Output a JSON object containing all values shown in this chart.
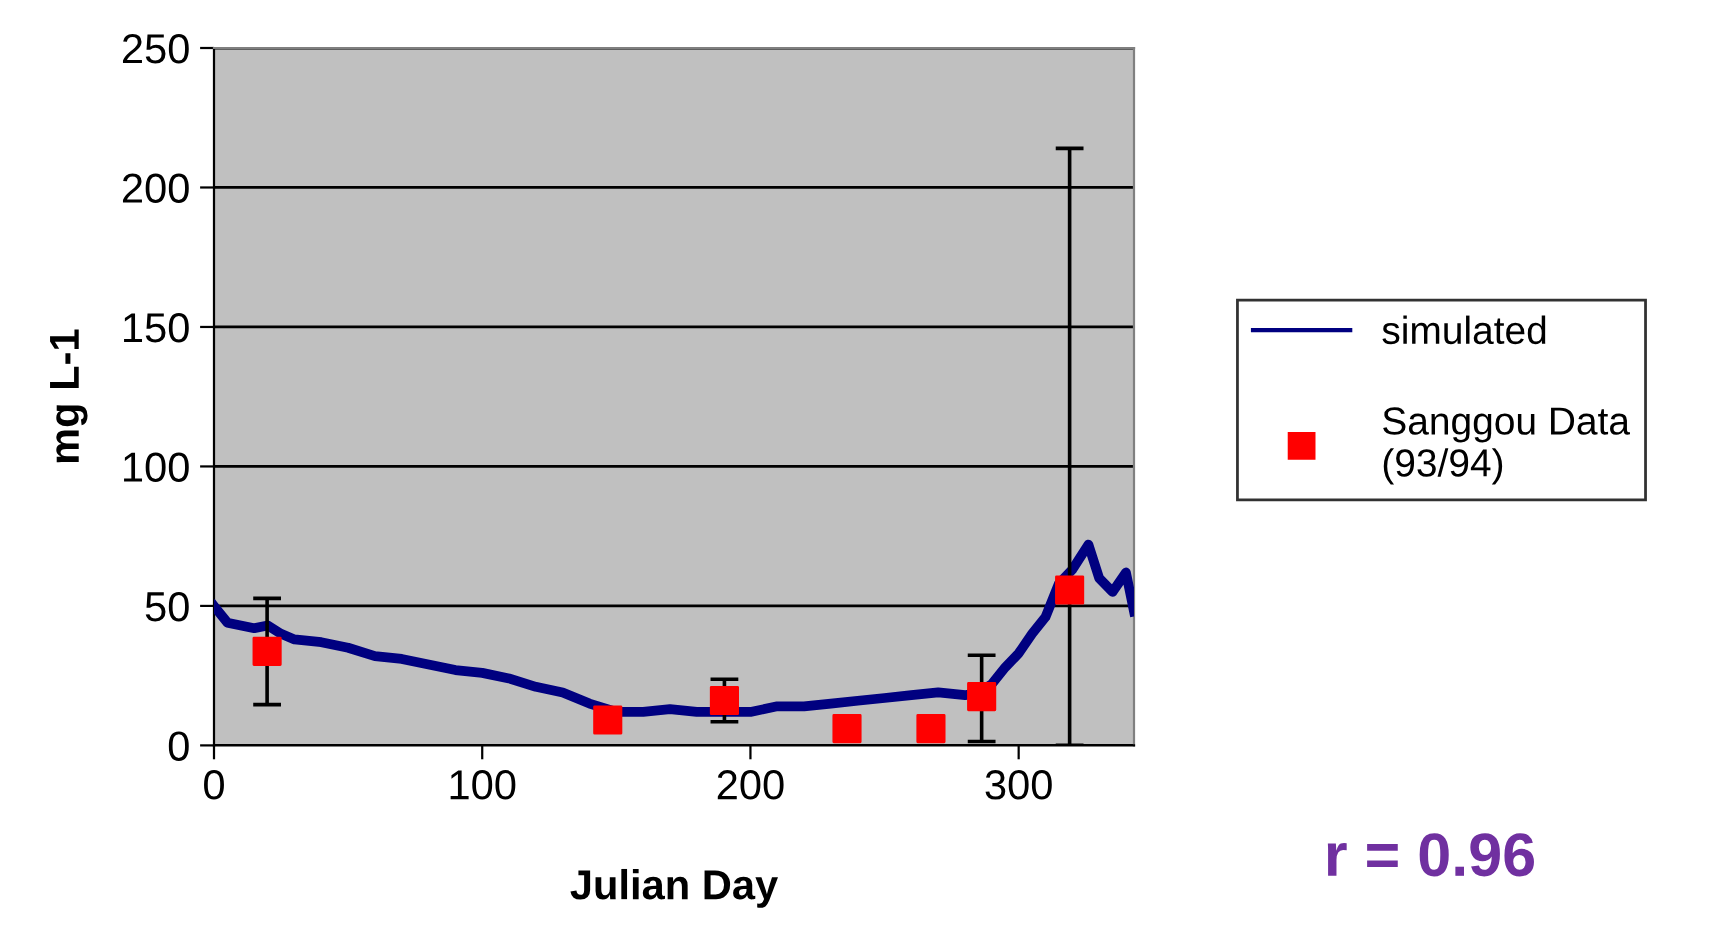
{
  "chart_data": {
    "type": "line",
    "xlabel": "Julian Day",
    "ylabel": "mg L-1",
    "xlim": [
      0,
      343
    ],
    "ylim": [
      0,
      250
    ],
    "xticks": [
      0,
      100,
      200,
      300
    ],
    "yticks": [
      0,
      50,
      100,
      150,
      200,
      250
    ],
    "grid": "y",
    "legend": "right",
    "annotations": [
      "r = 0.96"
    ],
    "series": [
      {
        "name": "simulated",
        "color": "#000080",
        "line_style": "solid",
        "marker": "none",
        "x": [
          0,
          5,
          10,
          15,
          20,
          25,
          30,
          40,
          50,
          60,
          70,
          80,
          90,
          100,
          110,
          120,
          130,
          140,
          150,
          160,
          170,
          180,
          190,
          200,
          210,
          220,
          230,
          240,
          250,
          260,
          270,
          280,
          285,
          290,
          295,
          300,
          305,
          310,
          315,
          320,
          326,
          330,
          335,
          340,
          343
        ],
        "values": [
          50,
          44,
          43,
          42,
          43,
          40,
          38,
          37,
          35,
          32,
          31,
          29,
          27,
          26,
          24,
          21,
          19,
          15,
          12,
          12,
          13,
          12,
          12,
          12,
          14,
          14,
          15,
          16,
          17,
          18,
          19,
          18,
          19,
          22,
          28,
          33,
          40,
          46,
          58,
          63,
          72,
          60,
          55,
          62,
          48
        ]
      },
      {
        "name": "Sanggou Data\n(93/94)",
        "type": "scatter",
        "color": "#ff0000",
        "marker": "square",
        "x": [
          19.8,
          146.8,
          190.3,
          236,
          267.3,
          286.2,
          319
        ],
        "values": [
          33.7,
          9.1,
          16.1,
          6,
          6,
          17.5,
          55.7
        ],
        "errors": [
          [
            14.6,
            52.7
          ],
          null,
          [
            8.5,
            23.7
          ],
          null,
          null,
          [
            1.4,
            32.3
          ],
          [
            0,
            214
          ]
        ]
      }
    ]
  }
}
